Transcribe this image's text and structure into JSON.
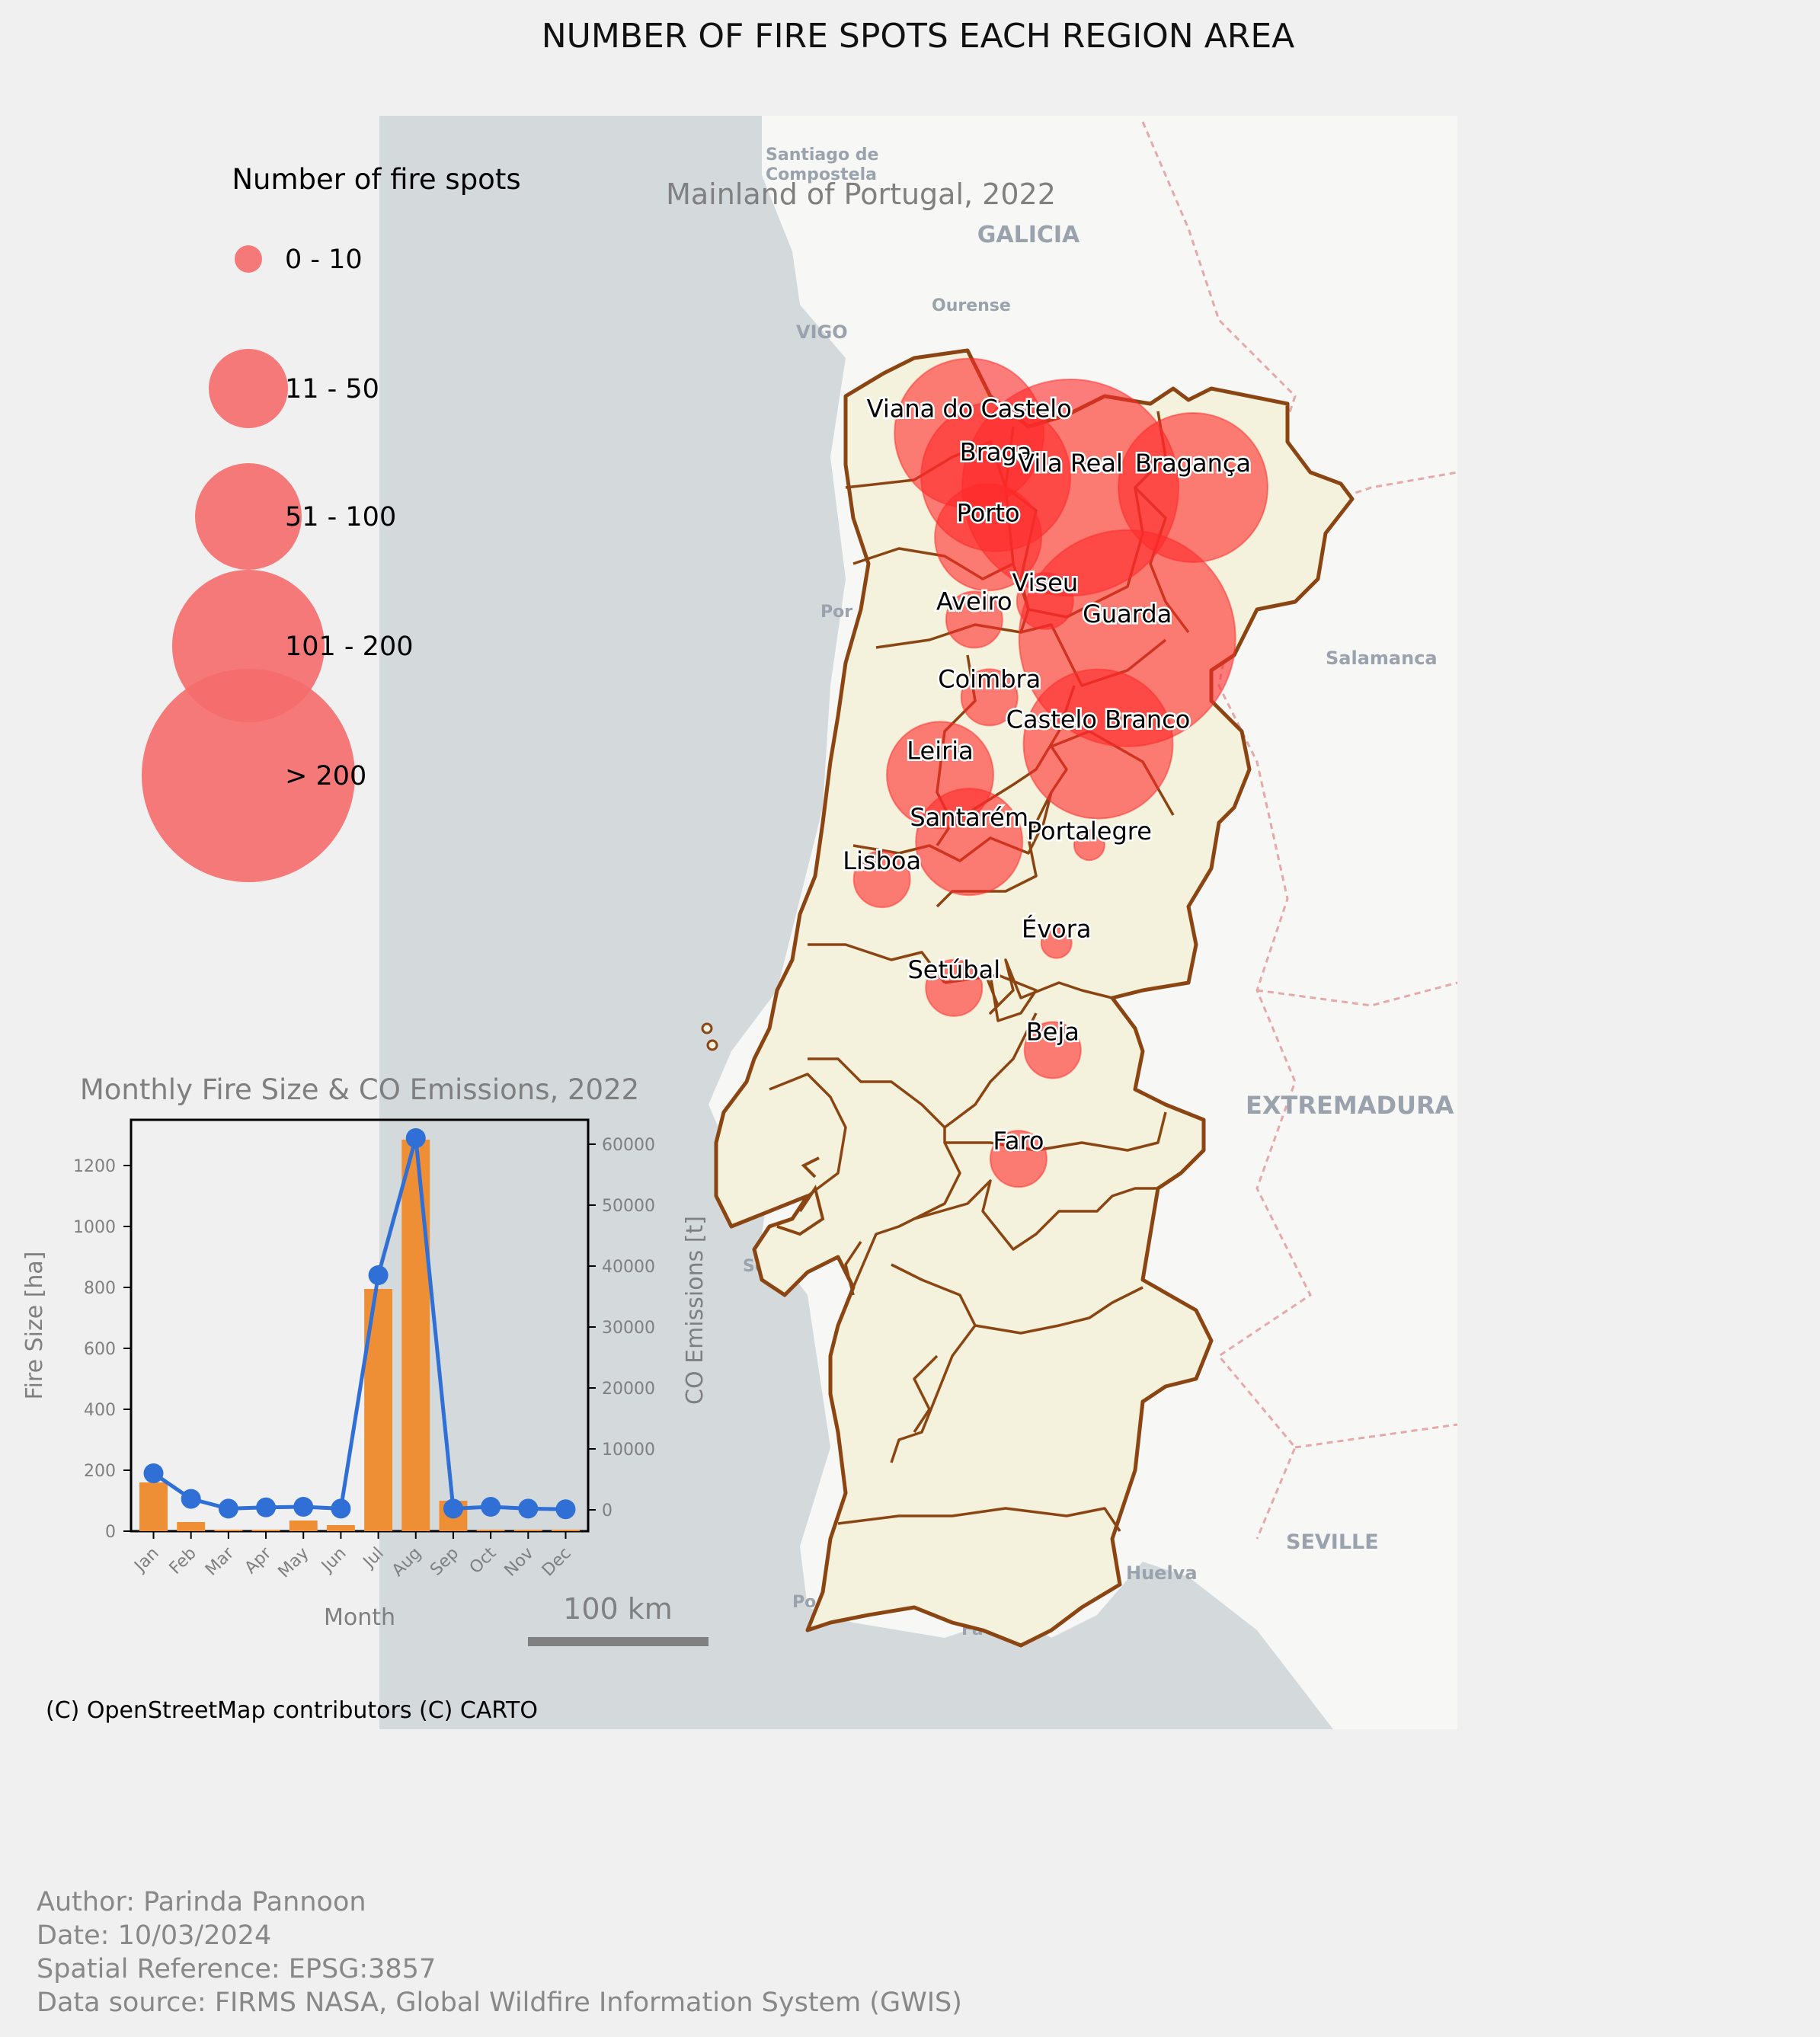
{
  "title": "NUMBER OF FIRE SPOTS EACH REGION AREA",
  "map": {
    "subtitle": "Mainland of Portugal, 2022",
    "attribution": "(C) OpenStreetMap contributors (C) CARTO",
    "scale_bar_label": "100 km",
    "colors": {
      "ocean": "#d4d9dc",
      "land_outside": "#f7f7f5",
      "portugal_fill": "#f4f2dc",
      "border": "#8b4513",
      "bubble": "#ff2a2a"
    },
    "basemap_labels": [
      {
        "text": "Santiago de",
        "kind": "city"
      },
      {
        "text": "Compostela",
        "kind": "city"
      },
      {
        "text": "GALICIA",
        "kind": "region"
      },
      {
        "text": "Ourense",
        "kind": "city"
      },
      {
        "text": "VIGO",
        "kind": "city"
      },
      {
        "text": "Salamanca",
        "kind": "city"
      },
      {
        "text": "EXTREMADURA",
        "kind": "region"
      },
      {
        "text": "SEVILLE",
        "kind": "city"
      },
      {
        "text": "Huelva",
        "kind": "city"
      },
      {
        "text": "Por",
        "kind": "city"
      },
      {
        "text": "Se",
        "kind": "city"
      },
      {
        "text": "Po",
        "kind": "city"
      },
      {
        "text": "Fa",
        "kind": "city"
      }
    ],
    "regions": [
      {
        "name": "Viana do Castelo",
        "lat": 41.85,
        "lon": -8.5,
        "class": "101 - 200"
      },
      {
        "name": "Braga",
        "lat": 41.57,
        "lon": -8.29,
        "class": "101 - 200"
      },
      {
        "name": "Vila Real",
        "lat": 41.5,
        "lon": -7.7,
        "class": "> 200"
      },
      {
        "name": "Bragança",
        "lat": 41.5,
        "lon": -6.73,
        "class": "101 - 200"
      },
      {
        "name": "Porto",
        "lat": 41.18,
        "lon": -8.35,
        "class": "51 - 100"
      },
      {
        "name": "Viseu",
        "lat": 40.77,
        "lon": -7.9,
        "class": "11 - 50"
      },
      {
        "name": "Aveiro",
        "lat": 40.65,
        "lon": -8.46,
        "class": "11 - 50"
      },
      {
        "name": "Guarda",
        "lat": 40.53,
        "lon": -7.25,
        "class": "> 200"
      },
      {
        "name": "Coimbra",
        "lat": 40.15,
        "lon": -8.34,
        "class": "11 - 50"
      },
      {
        "name": "Castelo Branco",
        "lat": 39.85,
        "lon": -7.48,
        "class": "101 - 200"
      },
      {
        "name": "Leiria",
        "lat": 39.65,
        "lon": -8.73,
        "class": "51 - 100"
      },
      {
        "name": "Santarém",
        "lat": 39.22,
        "lon": -8.5,
        "class": "51 - 100"
      },
      {
        "name": "Portalegre",
        "lat": 39.2,
        "lon": -7.55,
        "class": "0 - 10"
      },
      {
        "name": "Lisboa",
        "lat": 38.98,
        "lon": -9.19,
        "class": "11 - 50"
      },
      {
        "name": "Évora",
        "lat": 38.57,
        "lon": -7.81,
        "class": "0 - 10"
      },
      {
        "name": "Setúbal",
        "lat": 38.28,
        "lon": -8.62,
        "class": "11 - 50"
      },
      {
        "name": "Beja",
        "lat": 37.88,
        "lon": -7.84,
        "class": "11 - 50"
      },
      {
        "name": "Faro",
        "lat": 37.18,
        "lon": -8.11,
        "class": "11 - 50"
      }
    ]
  },
  "legend": {
    "title": "Number of fire spots",
    "items": [
      {
        "label": "0 - 10"
      },
      {
        "label": "11 - 50"
      },
      {
        "label": "51 - 100"
      },
      {
        "label": "101 - 200"
      },
      {
        "label": "> 200"
      }
    ]
  },
  "chart_data": {
    "type": "bar",
    "title": "Monthly Fire Size & CO Emissions, 2022",
    "xlabel": "Month",
    "ylabel": "Fire Size [ha]",
    "y2label": "CO Emissions [t]",
    "categories": [
      "Jan",
      "Feb",
      "Mar",
      "Apr",
      "May",
      "Jun",
      "Jul",
      "Aug",
      "Sep",
      "Oct",
      "Nov",
      "Dec"
    ],
    "ylim": [
      0,
      1350
    ],
    "y2lim": [
      -3500,
      64000
    ],
    "yticks": [
      0,
      200,
      400,
      600,
      800,
      1000,
      1200
    ],
    "y2ticks": [
      0,
      10000,
      20000,
      30000,
      40000,
      50000,
      60000
    ],
    "series": [
      {
        "name": "Fire Size",
        "type": "bar",
        "axis": "left",
        "color": "#ee8e35",
        "values": [
          160,
          30,
          5,
          5,
          35,
          20,
          795,
          1285,
          100,
          5,
          5,
          5
        ]
      },
      {
        "name": "CO Emissions",
        "type": "line",
        "axis": "right",
        "color": "#2f6fd6",
        "values": [
          6000,
          1800,
          200,
          400,
          500,
          200,
          38500,
          61000,
          200,
          500,
          200,
          100
        ]
      }
    ]
  },
  "credits": {
    "author": "Author: Parinda Pannoon",
    "date": "Date: 10/03/2024",
    "srs": "Spatial Reference: EPSG:3857",
    "source": "Data source: FIRMS NASA, Global Wildfire Information System (GWIS)"
  }
}
